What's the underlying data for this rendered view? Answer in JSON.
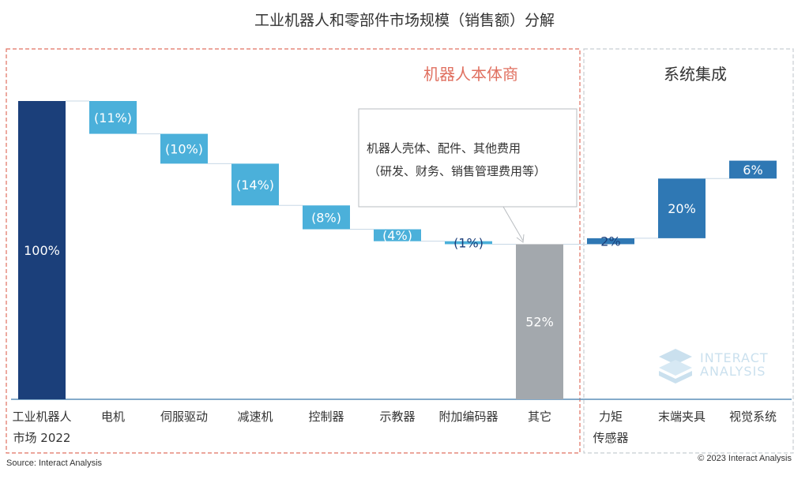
{
  "colors": {
    "start": "#1b3f7a",
    "light": "#4bb0da",
    "mid": "#2f78b4",
    "other": "#a3a8ad",
    "connector": "#c8d8e6",
    "robot_border": "#e07060",
    "robot_title": "#e07060",
    "system_border": "#c8cdd2",
    "system_title": "#333333",
    "axis": "#5b8fb8"
  },
  "chart_data": {
    "type": "waterfall",
    "title": "工业机器人和零部件市场规模（销售额）分解",
    "unit": "%",
    "ylim": [
      0,
      130
    ],
    "bars": [
      {
        "category": "工业机器人",
        "category_line2": "市场 2022",
        "base": 0,
        "value": 100,
        "label": "100%",
        "style": "start"
      },
      {
        "category": "电机",
        "category_line2": "",
        "base": 89,
        "value": 11,
        "label": "(11%)",
        "style": "light"
      },
      {
        "category": "伺服驱动",
        "category_line2": "",
        "base": 79,
        "value": 10,
        "label": "(10%)",
        "style": "light"
      },
      {
        "category": "减速机",
        "category_line2": "",
        "base": 65,
        "value": 14,
        "label": "(14%)",
        "style": "light"
      },
      {
        "category": "控制器",
        "category_line2": "",
        "base": 57,
        "value": 8,
        "label": "(8%)",
        "style": "light"
      },
      {
        "category": "示教器",
        "category_line2": "",
        "base": 53,
        "value": 4,
        "label": "(4%)",
        "style": "light"
      },
      {
        "category": "附加编码器",
        "category_line2": "",
        "base": 52,
        "value": 1,
        "label": "(1%)",
        "style": "light"
      },
      {
        "category": "其它",
        "category_line2": "",
        "base": 0,
        "value": 52,
        "label": "52%",
        "style": "other"
      },
      {
        "category": "力矩",
        "category_line2": "传感器",
        "base": 52,
        "value": 2,
        "label": "2%",
        "style": "mid"
      },
      {
        "category": "末端夹具",
        "category_line2": "",
        "base": 54,
        "value": 20,
        "label": "20%",
        "style": "mid"
      },
      {
        "category": "视觉系统",
        "category_line2": "",
        "base": 74,
        "value": 6,
        "label": "6%",
        "style": "mid"
      }
    ],
    "groups": [
      {
        "name": "机器人本体商",
        "from_index": 0,
        "to_index": 7
      },
      {
        "name": "系统集成",
        "from_index": 8,
        "to_index": 10
      }
    ],
    "annotation": {
      "line1": "机器人壳体、配件、其他费用",
      "line2": "（研发、财务、销售管理费用等）",
      "points_to_index": 7
    }
  },
  "watermark": {
    "line1": "INTERACT",
    "line2": "ANALYSIS"
  },
  "footer": {
    "source": "Source: Interact Analysis",
    "copyright": "© 2023 Interact Analysis"
  }
}
